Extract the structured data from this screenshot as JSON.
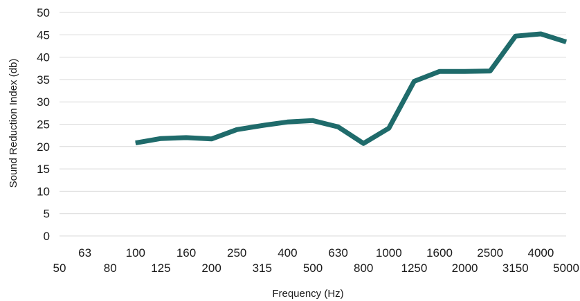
{
  "chart_data": {
    "type": "line",
    "title": "",
    "xlabel": "Frequency (Hz)",
    "ylabel": "Sound Reduction Index (db)",
    "ylim": [
      0,
      50
    ],
    "yticks": [
      "0",
      "5",
      "10",
      "15",
      "20",
      "25",
      "30",
      "35",
      "40",
      "45",
      "50"
    ],
    "categories": [
      "50",
      "63",
      "80",
      "100",
      "125",
      "160",
      "200",
      "250",
      "315",
      "400",
      "500",
      "630",
      "800",
      "1000",
      "1250",
      "1600",
      "2000",
      "2500",
      "3150",
      "4000",
      "5000"
    ],
    "series": [
      {
        "name": "",
        "color": "#1f6b6b",
        "values": [
          null,
          null,
          null,
          20.8,
          21.8,
          22.0,
          21.7,
          23.8,
          24.7,
          25.5,
          25.8,
          24.4,
          20.7,
          24.1,
          34.6,
          36.8,
          36.8,
          36.9,
          44.7,
          45.2,
          43.4
        ]
      }
    ],
    "grid": true,
    "legend": "none"
  }
}
